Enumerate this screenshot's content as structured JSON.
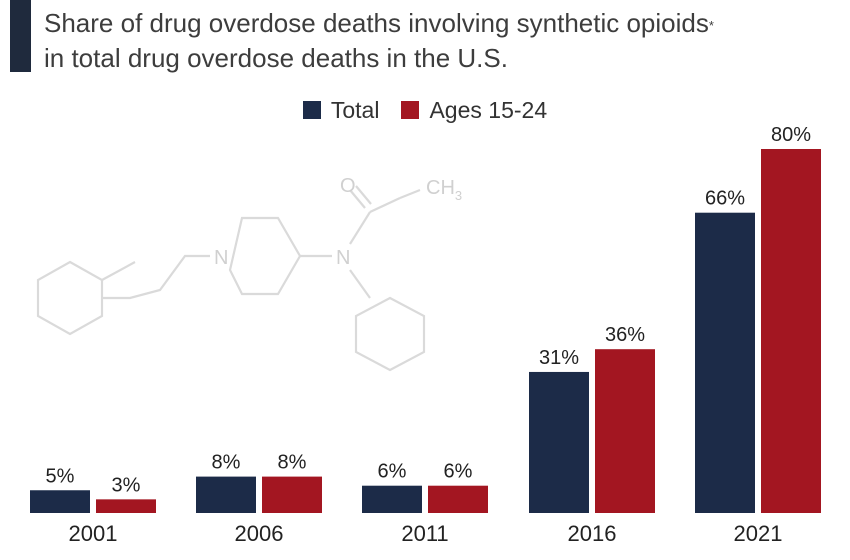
{
  "title": {
    "line1": "Share of drug overdose deaths involving synthetic opioids",
    "footnote_mark": "*",
    "line2": "in total drug overdose deaths in the U.S."
  },
  "colors": {
    "total": "#1c2b48",
    "ages": "#a31621",
    "accent_bar": "#1f2a3d"
  },
  "chart_data": {
    "type": "bar",
    "categories": [
      "2001",
      "2006",
      "2011",
      "2016",
      "2021"
    ],
    "series": [
      {
        "name": "Total",
        "values": [
          5,
          8,
          6,
          31,
          66
        ],
        "labels": [
          "5%",
          "8%",
          "6%",
          "31%",
          "66%"
        ]
      },
      {
        "name": "Ages 15-24",
        "values": [
          3,
          8,
          6,
          36,
          80
        ],
        "labels": [
          "3%",
          "8%",
          "6%",
          "36%",
          "80%"
        ]
      }
    ],
    "ylim": [
      0,
      80
    ],
    "legend_position": "top-center",
    "grid": false
  },
  "molecule_labels": {
    "o": "O",
    "ch3": "CH",
    "ch3_sub": "3",
    "n1": "N",
    "n2": "N"
  }
}
